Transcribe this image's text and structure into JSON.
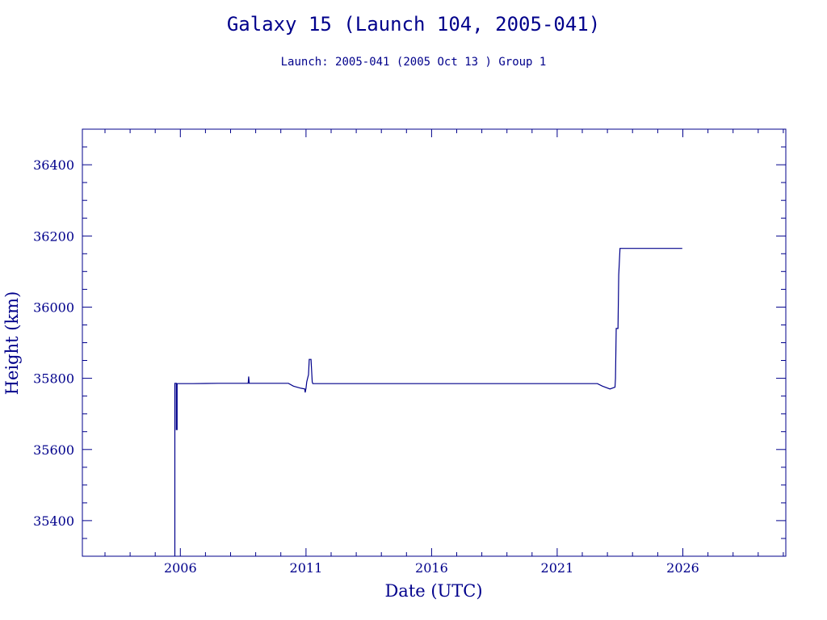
{
  "header": {
    "title": "Galaxy 15 (Launch 104, 2005-041)",
    "subtitle": "Launch: 2005-041  (2005 Oct 13 )  Group 1"
  },
  "colors": {
    "ink": "#00008b",
    "background": "#ffffff"
  },
  "chart_data": {
    "type": "line",
    "xlabel": "Date (UTC)",
    "ylabel": "Height (km)",
    "xlim": [
      2002.1,
      2030.1
    ],
    "ylim": [
      35300,
      36500
    ],
    "xticks": [
      2006,
      2011,
      2016,
      2021,
      2026
    ],
    "xtick_labels": [
      "2006",
      "2011",
      "2016",
      "2021",
      "2026"
    ],
    "yticks": [
      35400,
      35600,
      35800,
      36000,
      36200,
      36400
    ],
    "ytick_labels": [
      "35400",
      "35600",
      "35800",
      "36000",
      "36200",
      "36400"
    ],
    "grid": false,
    "legend": "none",
    "series": [
      {
        "points": [
          [
            2005.78,
            35300
          ],
          [
            2005.78,
            35786
          ],
          [
            2005.84,
            35786
          ],
          [
            2005.84,
            35656
          ],
          [
            2005.87,
            35656
          ],
          [
            2005.87,
            35785
          ],
          [
            2006.5,
            35785
          ],
          [
            2007.5,
            35786
          ],
          [
            2008.7,
            35786
          ],
          [
            2008.72,
            35805
          ],
          [
            2008.74,
            35786
          ],
          [
            2009.5,
            35786
          ],
          [
            2010.0,
            35786
          ],
          [
            2010.3,
            35786
          ],
          [
            2010.5,
            35778
          ],
          [
            2010.8,
            35772
          ],
          [
            2010.95,
            35770
          ],
          [
            2010.97,
            35760
          ],
          [
            2011.0,
            35772
          ],
          [
            2011.03,
            35790
          ],
          [
            2011.1,
            35810
          ],
          [
            2011.13,
            35853
          ],
          [
            2011.2,
            35853
          ],
          [
            2011.25,
            35790
          ],
          [
            2011.27,
            35785
          ],
          [
            2012.5,
            35785
          ],
          [
            2014.0,
            35785
          ],
          [
            2016.0,
            35785
          ],
          [
            2018.0,
            35785
          ],
          [
            2020.0,
            35785
          ],
          [
            2022.0,
            35785
          ],
          [
            2022.6,
            35785
          ],
          [
            2022.8,
            35778
          ],
          [
            2023.1,
            35770
          ],
          [
            2023.3,
            35775
          ],
          [
            2023.32,
            35800
          ],
          [
            2023.35,
            35940
          ],
          [
            2023.42,
            35940
          ],
          [
            2023.45,
            36090
          ],
          [
            2023.5,
            36165
          ],
          [
            2024.5,
            36165
          ],
          [
            2025.5,
            36165
          ],
          [
            2025.98,
            36165
          ]
        ]
      }
    ]
  }
}
